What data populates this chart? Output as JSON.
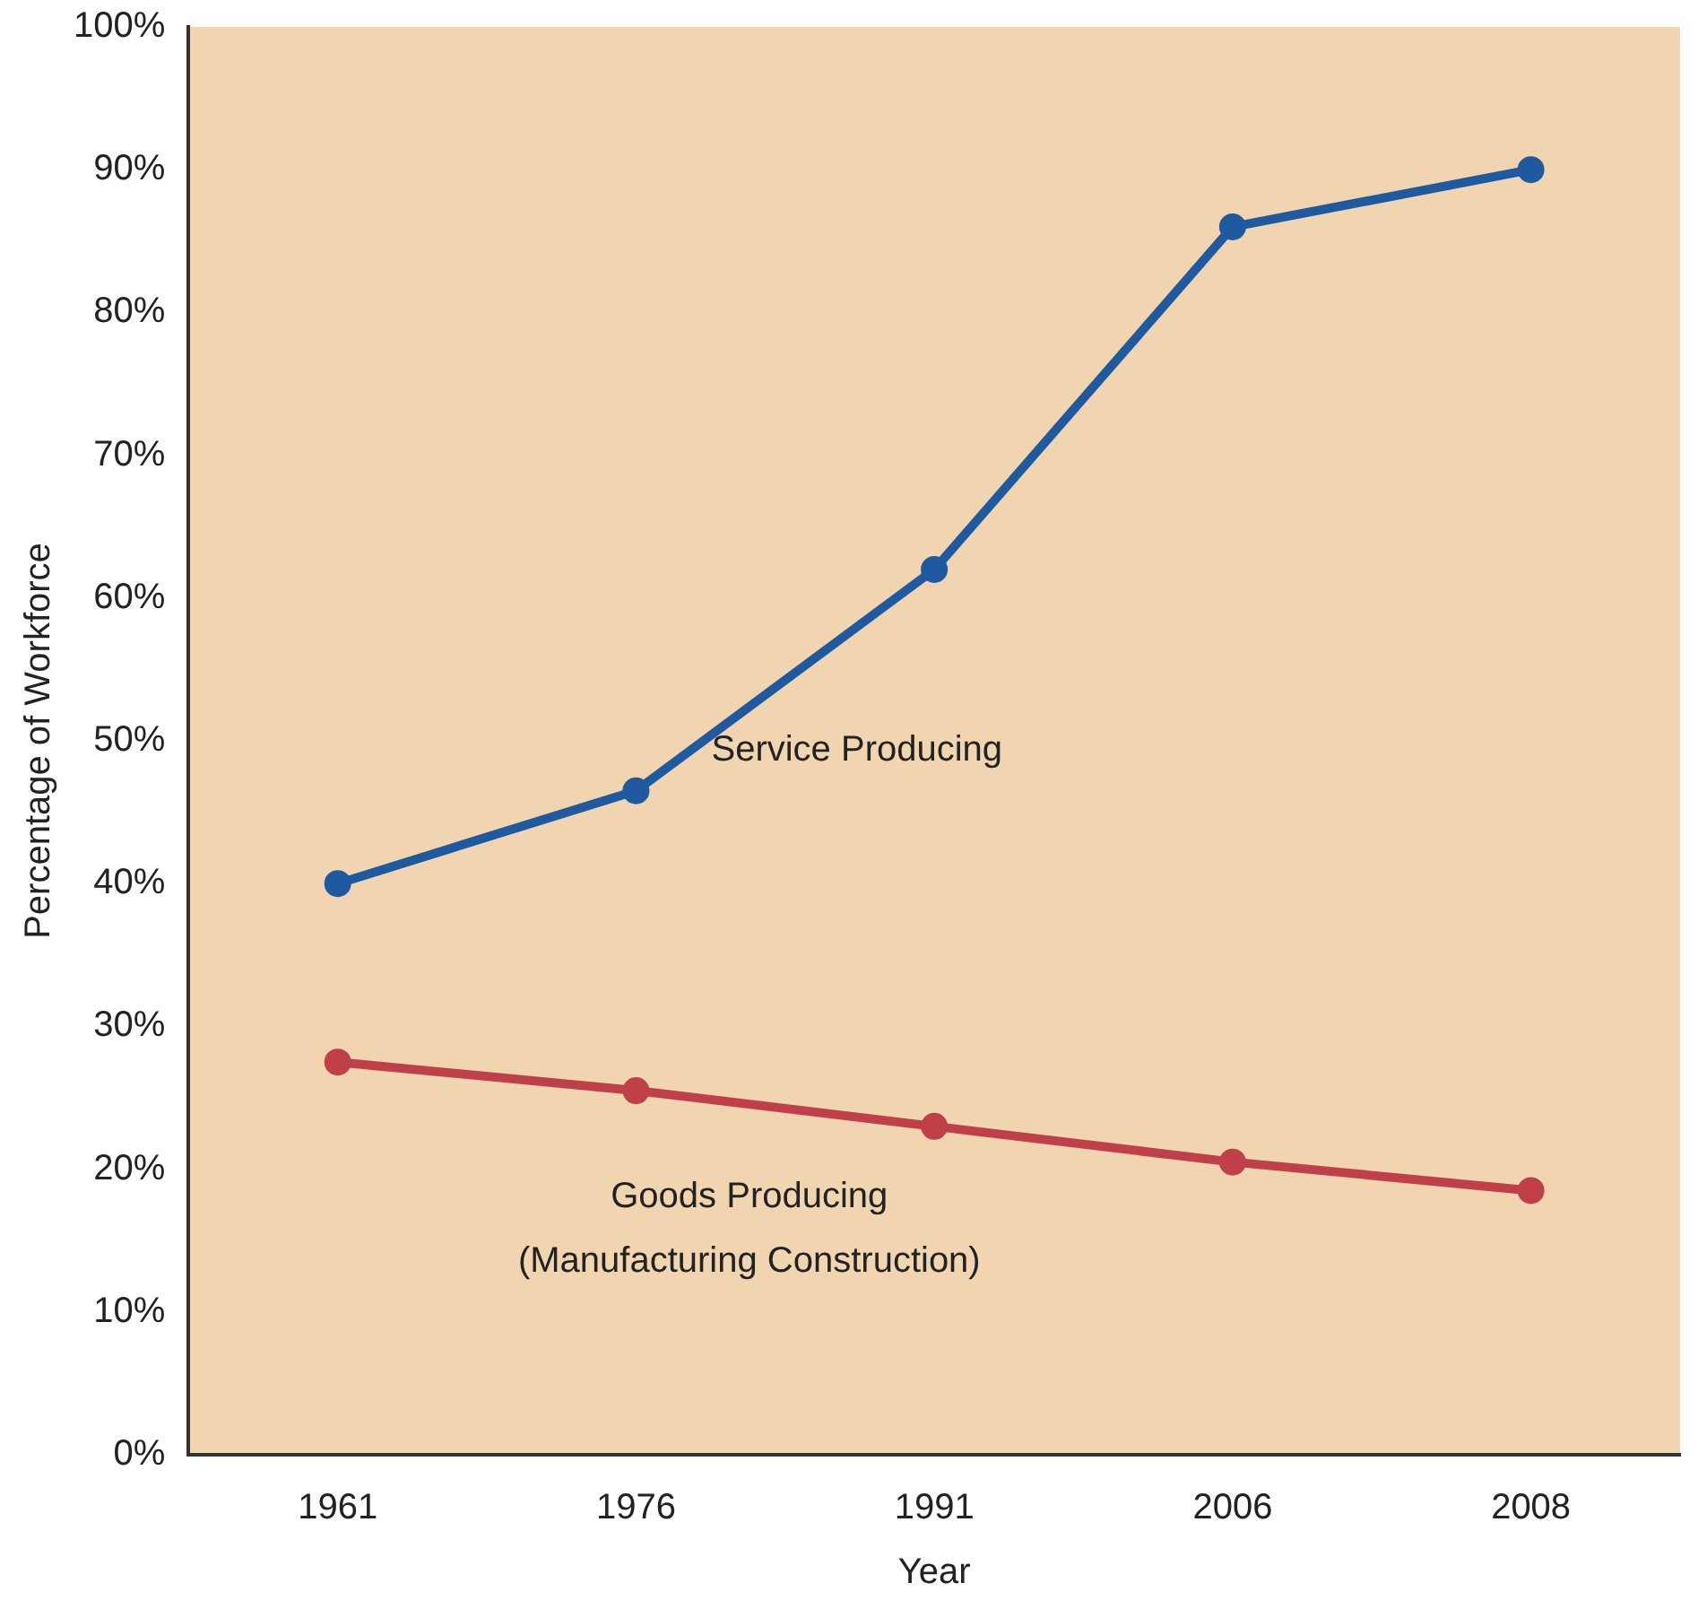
{
  "chart_data": {
    "type": "line",
    "xlabel": "Year",
    "ylabel": "Percentage of Workforce",
    "categories": [
      "1961",
      "1976",
      "1991",
      "2006",
      "2008"
    ],
    "series": [
      {
        "name": "Service Producing",
        "color": "#1f5aa0",
        "values": [
          40,
          46.5,
          62,
          86,
          90
        ]
      },
      {
        "name": "Goods Producing\n(Manufacturing Construction)",
        "color": "#c0404a",
        "values": [
          27.5,
          25.5,
          23,
          20.5,
          18.5
        ]
      }
    ],
    "ylim": [
      0,
      100
    ],
    "yticks": [
      {
        "value": 0,
        "label": "0%"
      },
      {
        "value": 10,
        "label": "10%"
      },
      {
        "value": 20,
        "label": "20%"
      },
      {
        "value": 30,
        "label": "30%"
      },
      {
        "value": 40,
        "label": "40%"
      },
      {
        "value": 50,
        "label": "50%"
      },
      {
        "value": 60,
        "label": "60%"
      },
      {
        "value": 70,
        "label": "70%"
      },
      {
        "value": 80,
        "label": "80%"
      },
      {
        "value": 90,
        "label": "90%"
      },
      {
        "value": 100,
        "label": "100%"
      }
    ],
    "grid": false,
    "legend": false,
    "marker": "circle",
    "line_style": "solid"
  }
}
